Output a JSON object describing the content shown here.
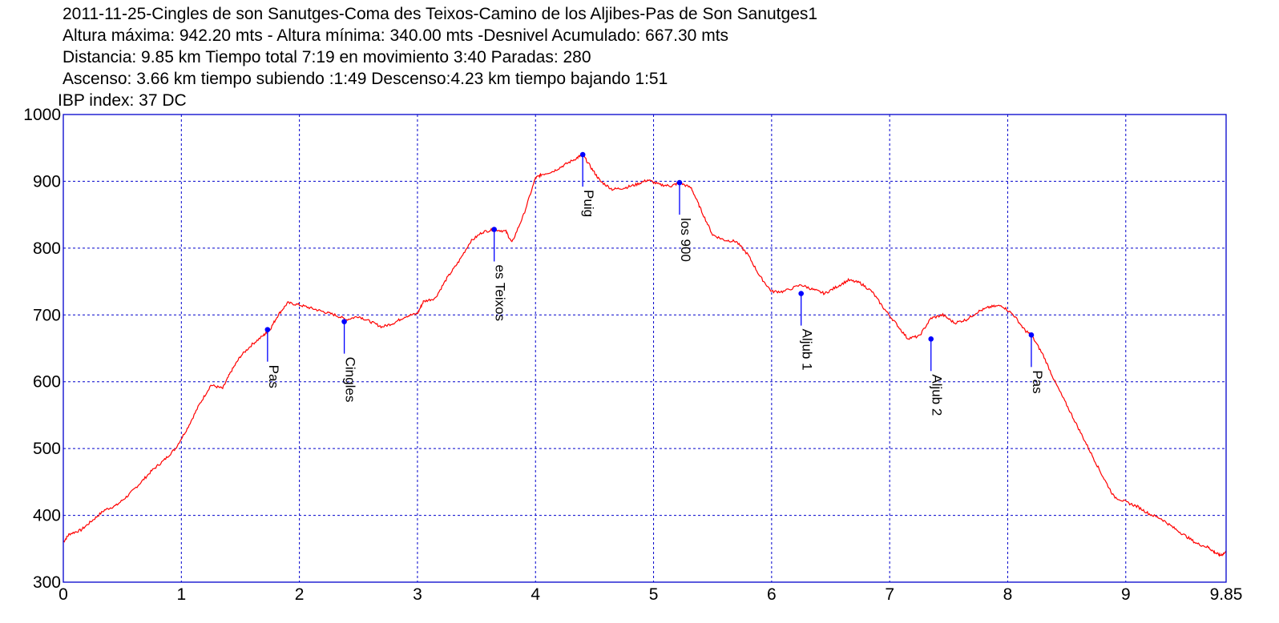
{
  "header": {
    "lines": [
      "2011-11-25-Cingles de son Sanutges-Coma des Teixos-Camino de los Aljibes-Pas de Son Sanutges1",
      "Altura máxima: 942.20 mts - Altura mínima: 340.00 mts -Desnivel Acumulado: 667.30 mts",
      "Distancia: 9.85 km  Tiempo total 7:19  en movimiento 3:40 Paradas: 280",
      "Ascenso: 3.66 km  tiempo subiendo :1:49  Descenso:4.23 km tiempo bajando 1:51",
      "IBP index: 37 DC"
    ]
  },
  "chart_data": {
    "type": "line",
    "title": "2011-11-25-Cingles de son Sanutges-Coma des Teixos-Camino de los Aljibes-Pas de Son Sanutges1",
    "xlabel": "",
    "ylabel": "",
    "xlim": [
      0,
      9.85
    ],
    "ylim": [
      300,
      1000
    ],
    "x_ticks": [
      "0",
      "1",
      "2",
      "3",
      "4",
      "5",
      "6",
      "7",
      "8",
      "9",
      "9.85"
    ],
    "x_tick_values": [
      0,
      1,
      2,
      3,
      4,
      5,
      6,
      7,
      8,
      9,
      9.85
    ],
    "y_ticks": [
      "300",
      "400",
      "500",
      "600",
      "700",
      "800",
      "900",
      "1000"
    ],
    "y_tick_values": [
      300,
      400,
      500,
      600,
      700,
      800,
      900,
      1000
    ],
    "grid": true,
    "colors": {
      "line": "#ff0000",
      "grid": "#0000cc",
      "frame": "#0000cc",
      "marker": "#0000ff"
    },
    "series": [
      {
        "x": [
          0,
          0.05,
          0.15,
          0.25,
          0.35,
          0.45,
          0.55,
          0.65,
          0.75,
          0.85,
          0.95,
          1.05,
          1.15,
          1.25,
          1.35,
          1.42,
          1.5,
          1.6,
          1.7,
          1.75,
          1.82,
          1.9,
          2.0,
          2.1,
          2.2,
          2.3,
          2.4,
          2.5,
          2.6,
          2.7,
          2.8,
          2.9,
          3.0,
          3.05,
          3.15,
          3.25,
          3.35,
          3.45,
          3.55,
          3.65,
          3.75,
          3.8,
          3.9,
          4.0,
          4.05,
          4.15,
          4.25,
          4.35,
          4.4,
          4.48,
          4.55,
          4.65,
          4.75,
          4.85,
          4.95,
          5.05,
          5.15,
          5.22,
          5.32,
          5.4,
          5.5,
          5.6,
          5.7,
          5.8,
          5.9,
          6.0,
          6.1,
          6.25,
          6.35,
          6.45,
          6.55,
          6.65,
          6.75,
          6.85,
          6.95,
          7.05,
          7.15,
          7.25,
          7.35,
          7.45,
          7.55,
          7.65,
          7.75,
          7.85,
          7.95,
          8.05,
          8.15,
          8.2,
          8.3,
          8.4,
          8.5,
          8.6,
          8.7,
          8.8,
          8.9,
          9.0,
          9.1,
          9.2,
          9.3,
          9.4,
          9.5,
          9.6,
          9.7,
          9.75,
          9.8,
          9.85
        ],
        "y": [
          360,
          372,
          378,
          393,
          408,
          415,
          430,
          448,
          467,
          482,
          500,
          530,
          565,
          595,
          590,
          615,
          638,
          656,
          670,
          678,
          700,
          718,
          715,
          710,
          705,
          700,
          693,
          698,
          690,
          682,
          688,
          698,
          702,
          720,
          725,
          755,
          780,
          810,
          824,
          828,
          825,
          808,
          850,
          905,
          910,
          915,
          925,
          935,
          940,
          918,
          900,
          888,
          890,
          895,
          902,
          895,
          893,
          898,
          890,
          858,
          820,
          812,
          810,
          790,
          758,
          735,
          735,
          745,
          738,
          732,
          742,
          752,
          748,
          735,
          710,
          688,
          665,
          668,
          695,
          700,
          688,
          693,
          705,
          712,
          714,
          700,
          676,
          670,
          640,
          600,
          565,
          530,
          495,
          460,
          428,
          420,
          413,
          402,
          395,
          382,
          370,
          358,
          352,
          345,
          340,
          345
        ]
      }
    ],
    "annotations": [
      {
        "label": "Pas",
        "x": 1.73,
        "y": 678
      },
      {
        "label": "Cingles",
        "x": 2.38,
        "y": 690
      },
      {
        "label": "es Teixos",
        "x": 3.65,
        "y": 828
      },
      {
        "label": "Puig",
        "x": 4.4,
        "y": 940
      },
      {
        "label": "los 900",
        "x": 5.22,
        "y": 898
      },
      {
        "label": "Aljub 1",
        "x": 6.25,
        "y": 732
      },
      {
        "label": "Aljub 2",
        "x": 7.35,
        "y": 664
      },
      {
        "label": "Pas",
        "x": 8.2,
        "y": 670
      }
    ]
  }
}
